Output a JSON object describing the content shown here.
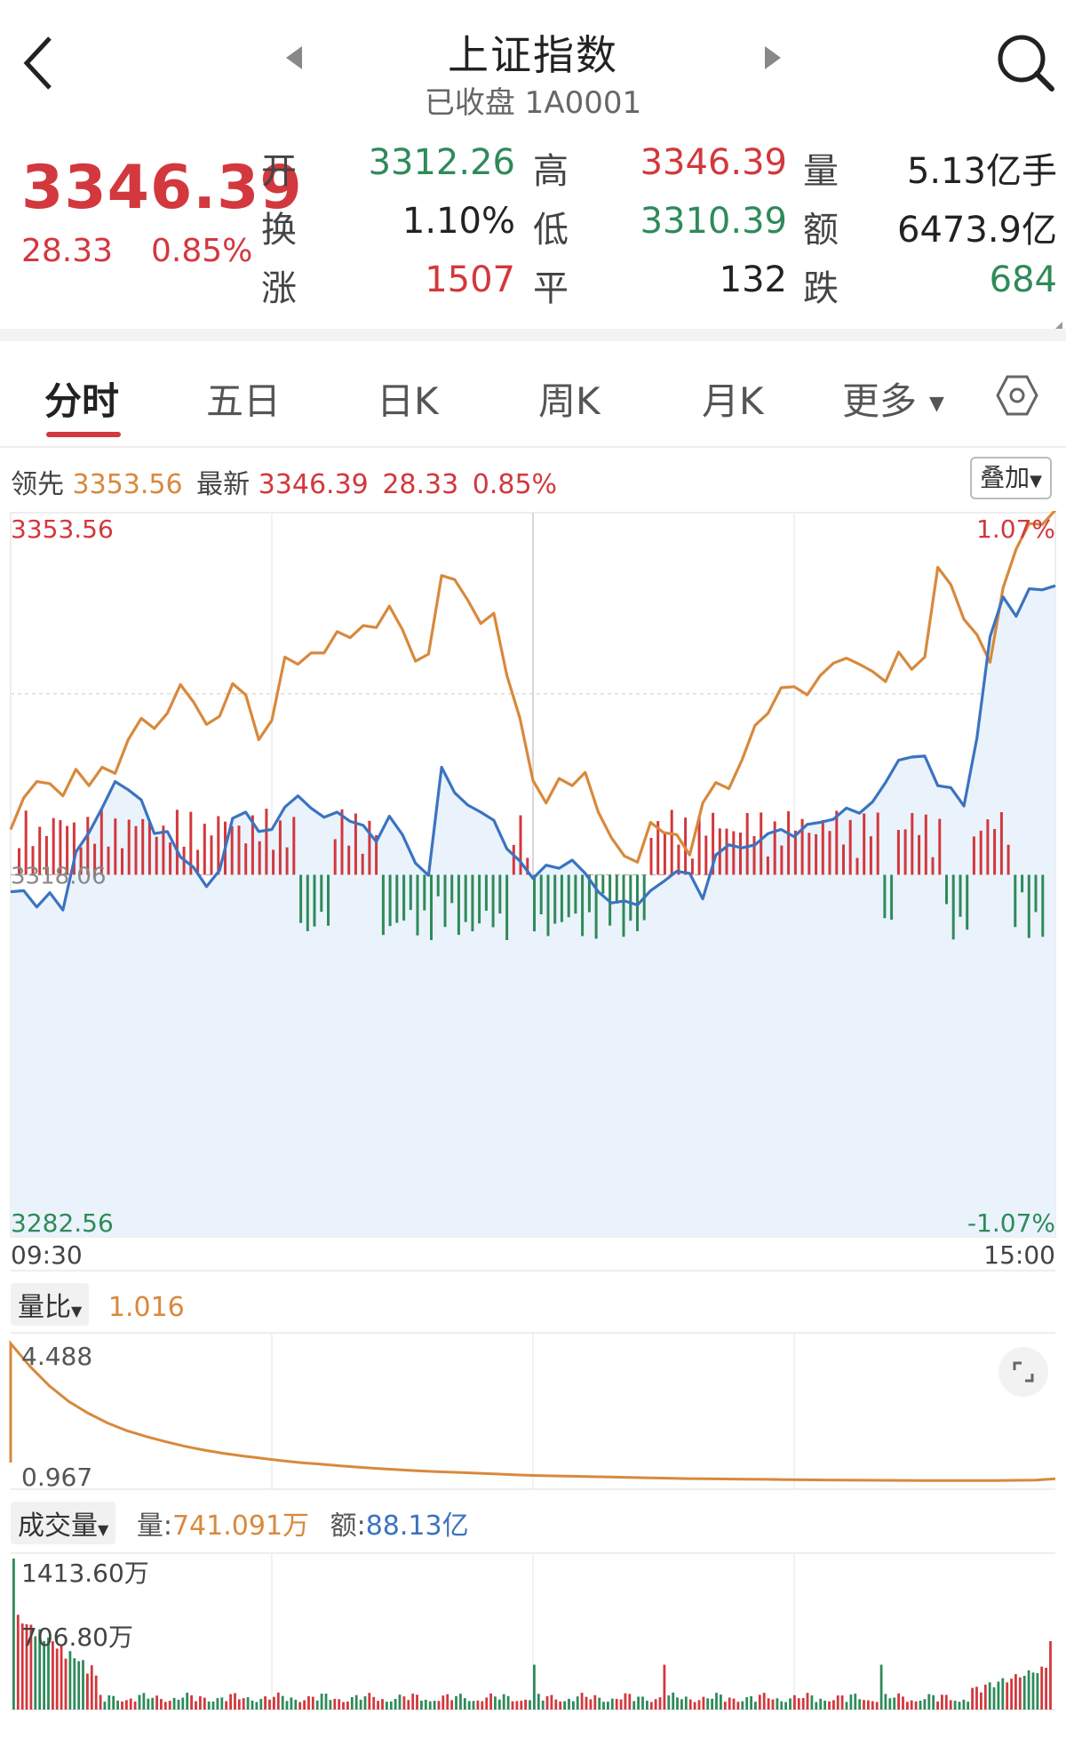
{
  "header": {
    "title": "上证指数",
    "subtitle": "已收盘 1A0001"
  },
  "quote": {
    "price": "3346.39",
    "change": "28.33",
    "change_pct": "0.85%",
    "rows": [
      {
        "l1": "开",
        "v1": "3312.26",
        "l2": "高",
        "v2": "3346.39",
        "l3": "量",
        "v3": "5.13亿手"
      },
      {
        "l1": "换",
        "v1": "1.10%",
        "l2": "低",
        "v2": "3310.39",
        "l3": "额",
        "v3": "6473.9亿"
      },
      {
        "l1": "涨",
        "v1": "1507",
        "l2": "平",
        "v2": "132",
        "l3": "跌",
        "v3": "684"
      }
    ]
  },
  "tabs": {
    "items": [
      "分时",
      "五日",
      "日K",
      "周K",
      "月K",
      "更多"
    ],
    "active": "分时"
  },
  "legend": {
    "lead_label": "领先",
    "lead_value": "3353.56",
    "latest_label": "最新",
    "latest_value": "3346.39",
    "latest_change": "28.33",
    "latest_pct": "0.85%",
    "overlay_button": "叠加"
  },
  "chart_data": {
    "type": "line",
    "title": "",
    "x_start": "09:30",
    "x_end": "15:00",
    "y_top_label": "3353.56",
    "y_mid_label": "3318.06",
    "y_bottom_label": "3282.56",
    "pct_top_label": "1.07%",
    "pct_bottom_label": "-1.07%",
    "ylim": [
      3282.56,
      3353.56
    ],
    "series": [
      {
        "color": "#d8893c",
        "values": [
          3322.5,
          3325.6,
          3327.2,
          3327.0,
          3325.8,
          3328.4,
          3326.8,
          3328.6,
          3328.0,
          3331.3,
          3333.4,
          3332.4,
          3333.9,
          3336.7,
          3335.0,
          3332.8,
          3333.6,
          3336.8,
          3335.7,
          3331.3,
          3333.2,
          3339.4,
          3338.7,
          3339.8,
          3339.8,
          3341.9,
          3341.3,
          3342.5,
          3342.3,
          3344.4,
          3342.1,
          3339.0,
          3339.7,
          3347.4,
          3347.0,
          3345.0,
          3342.7,
          3343.7,
          3337.6,
          3333.4,
          3327.3,
          3325.1,
          3327.5,
          3326.8,
          3328.1,
          3324.2,
          3321.7,
          3319.9,
          3319.3,
          3323.2,
          3322.2,
          3322.0,
          3320.0,
          3325.1,
          3327.1,
          3326.5,
          3329.3,
          3332.7,
          3333.9,
          3336.4,
          3336.5,
          3335.7,
          3337.6,
          3338.8,
          3339.3,
          3338.7,
          3338.0,
          3337.0,
          3339.9,
          3338.2,
          3339.4,
          3348.2,
          3346.5,
          3343.1,
          3341.6,
          3338.9,
          3346.2,
          3350.0,
          3352.5,
          3352.4,
          3353.8
        ]
      },
      {
        "color": "#3b73c1",
        "values": [
          3316.4,
          3316.5,
          3314.9,
          3316.3,
          3314.6,
          3320.3,
          3322.2,
          3324.6,
          3327.2,
          3326.4,
          3325.4,
          3322.1,
          3322.3,
          3319.8,
          3318.8,
          3316.9,
          3318.5,
          3323.6,
          3324.2,
          3322.3,
          3322.5,
          3324.7,
          3325.8,
          3324.6,
          3323.7,
          3324.2,
          3323.3,
          3322.9,
          3321.3,
          3323.8,
          3322.0,
          3319.2,
          3318.0,
          3328.6,
          3326.1,
          3324.9,
          3324.2,
          3323.4,
          3320.6,
          3319.4,
          3317.7,
          3319.0,
          3318.7,
          3319.5,
          3318.2,
          3316.4,
          3315.3,
          3315.5,
          3315.1,
          3316.5,
          3317.4,
          3318.4,
          3318.2,
          3315.7,
          3320.0,
          3321.0,
          3320.7,
          3321.0,
          3322.1,
          3322.5,
          3321.8,
          3323.0,
          3323.2,
          3323.5,
          3324.6,
          3324.1,
          3325.2,
          3327.1,
          3329.3,
          3329.6,
          3329.7,
          3326.8,
          3326.6,
          3324.8,
          3331.5,
          3341.4,
          3345.3,
          3343.4,
          3346.1,
          3346.0,
          3346.4
        ]
      }
    ],
    "volume_ratio": {
      "label": "量比",
      "value": "1.016",
      "max_label": "4.488",
      "min_label": "0.967",
      "values": [
        4.488,
        3.9,
        3.4,
        3.0,
        2.7,
        2.45,
        2.25,
        2.1,
        1.97,
        1.85,
        1.75,
        1.67,
        1.6,
        1.54,
        1.48,
        1.43,
        1.39,
        1.35,
        1.31,
        1.28,
        1.25,
        1.22,
        1.2,
        1.18,
        1.16,
        1.14,
        1.12,
        1.1,
        1.09,
        1.08,
        1.07,
        1.06,
        1.05,
        1.04,
        1.03,
        1.02,
        1.015,
        1.01,
        1.005,
        1.0,
        0.995,
        0.99,
        0.985,
        0.98,
        0.977,
        0.975,
        0.973,
        0.972,
        0.971,
        0.97,
        0.97,
        0.97,
        0.975,
        0.98,
        1.016
      ]
    },
    "volume": {
      "label": "成交量",
      "amount_label": "量:",
      "amount_value": "741.091万",
      "turnover_label": "额:",
      "turnover_value": "88.13亿",
      "max_label": "1413.60万",
      "mid_label": "706.80万",
      "max_value": 1413.6
    }
  },
  "colors": {
    "up": "#d2383d",
    "down": "#2f8a5a",
    "lead_line": "#d8893c",
    "price_line": "#3b73c1"
  },
  "icons": {
    "back": "back-arrow-icon",
    "prev": "triangle-left-icon",
    "next": "triangle-right-icon",
    "search": "search-icon",
    "settings": "hexagon-settings-icon",
    "expand": "expand-icon"
  }
}
